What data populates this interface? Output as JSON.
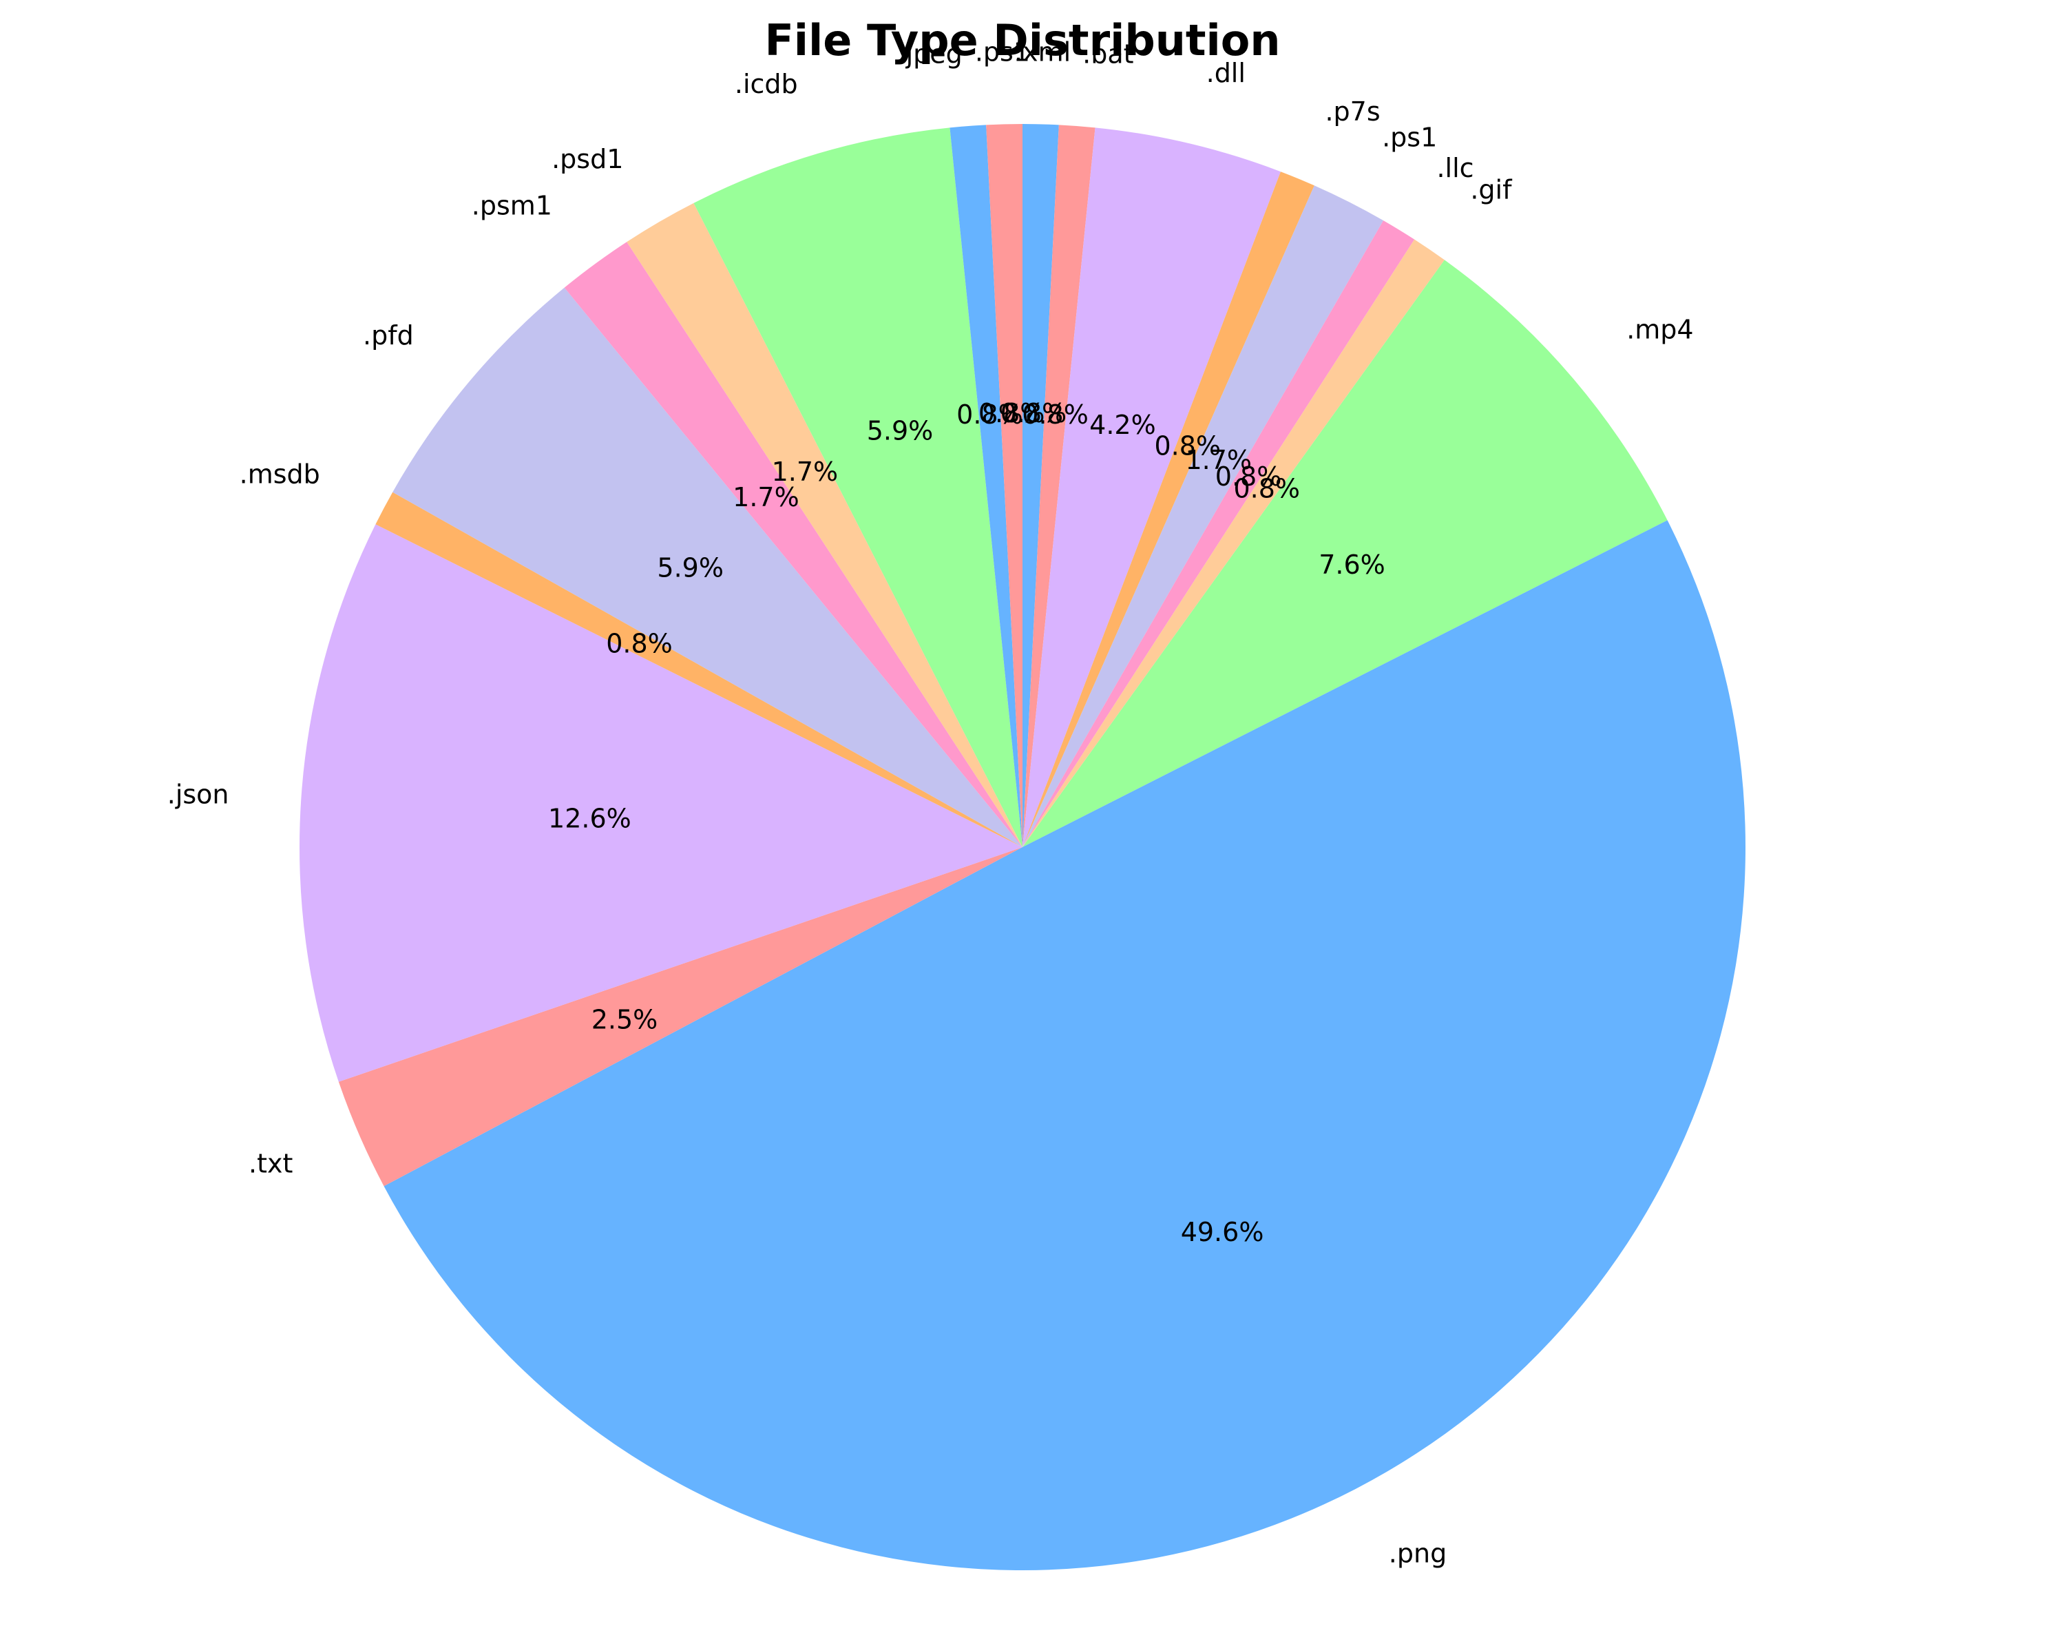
{
  "chart_data": {
    "type": "pie",
    "title": "File Type Distribution",
    "start_angle_deg": 90,
    "direction": "clockwise",
    "slices": [
      {
        "label": ".xml",
        "value": 0.8,
        "pct_label": "0.8%",
        "color": "#66b3ff"
      },
      {
        "label": ".bat",
        "value": 0.8,
        "pct_label": "0.8%",
        "color": "#ff9999"
      },
      {
        "label": ".dll",
        "value": 4.2,
        "pct_label": "4.2%",
        "color": "#d9b3ff"
      },
      {
        "label": ".p7s",
        "value": 0.8,
        "pct_label": "0.8%",
        "color": "#ffb366"
      },
      {
        "label": ".ps1",
        "value": 1.7,
        "pct_label": "1.7%",
        "color": "#c2c2f0"
      },
      {
        "label": ".llc",
        "value": 0.8,
        "pct_label": "0.8%",
        "color": "#ff99cc"
      },
      {
        "label": ".gif",
        "value": 0.8,
        "pct_label": "0.8%",
        "color": "#ffcc99"
      },
      {
        "label": ".mp4",
        "value": 7.6,
        "pct_label": "7.6%",
        "color": "#99ff99"
      },
      {
        "label": ".png",
        "value": 49.6,
        "pct_label": "49.6%",
        "color": "#66b3ff"
      },
      {
        "label": ".txt",
        "value": 2.5,
        "pct_label": "2.5%",
        "color": "#ff9999"
      },
      {
        "label": ".json",
        "value": 12.6,
        "pct_label": "12.6%",
        "color": "#d9b3ff"
      },
      {
        "label": ".msdb",
        "value": 0.8,
        "pct_label": "0.8%",
        "color": "#ffb366"
      },
      {
        "label": ".pfd",
        "value": 5.9,
        "pct_label": "5.9%",
        "color": "#c2c2f0"
      },
      {
        "label": ".psm1",
        "value": 1.7,
        "pct_label": "1.7%",
        "color": "#ff99cc"
      },
      {
        "label": ".psd1",
        "value": 1.7,
        "pct_label": "1.7%",
        "color": "#ffcc99"
      },
      {
        "label": ".icdb",
        "value": 5.9,
        "pct_label": "5.9%",
        "color": "#99ff99"
      },
      {
        "label": ".jpeg",
        "value": 0.8,
        "pct_label": "0.8%",
        "color": "#66b3ff"
      },
      {
        "label": ".ps1",
        "value": 0.8,
        "pct_label": "0.8%",
        "color": "#ff9999"
      }
    ]
  }
}
